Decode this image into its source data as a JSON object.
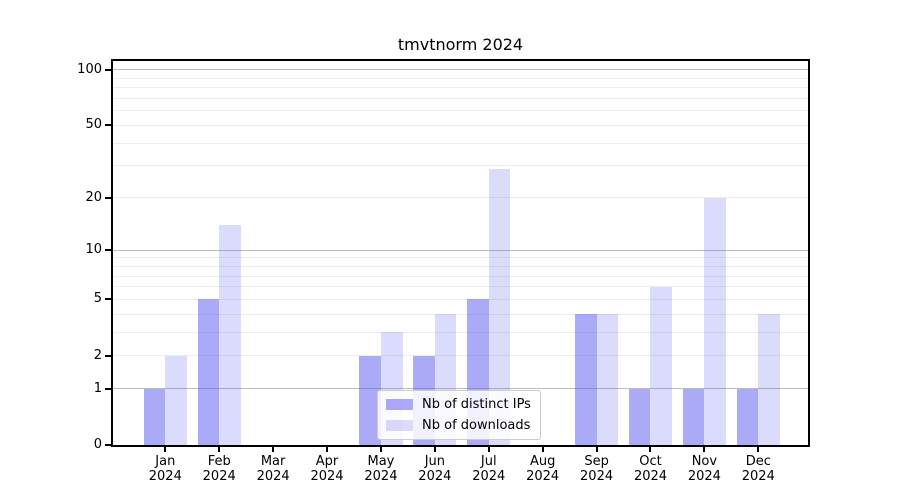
{
  "title": "tmvtnorm 2024",
  "legend": {
    "items": [
      {
        "label": "Nb of distinct IPs"
      },
      {
        "label": "Nb of downloads"
      }
    ]
  },
  "chart_data": {
    "type": "bar",
    "title": "tmvtnorm 2024",
    "xlabel": "",
    "ylabel": "",
    "yscale": "log1p",
    "ylim": [
      0,
      112
    ],
    "grid": true,
    "legend_position": "lower center",
    "categories": [
      "Jan 2024",
      "Feb 2024",
      "Mar 2024",
      "Apr 2024",
      "May 2024",
      "Jun 2024",
      "Jul 2024",
      "Aug 2024",
      "Sep 2024",
      "Oct 2024",
      "Nov 2024",
      "Dec 2024"
    ],
    "series": [
      {
        "name": "Nb of distinct IPs",
        "color": "rgba(92,92,237,0.52)",
        "values": [
          1,
          5,
          0,
          0,
          2,
          2,
          5,
          0,
          4,
          1,
          1,
          1
        ]
      },
      {
        "name": "Nb of downloads",
        "color": "rgba(92,92,237,0.22)",
        "values": [
          2,
          14,
          0,
          0,
          3,
          4,
          29,
          0,
          4,
          6,
          20,
          4
        ]
      }
    ],
    "yticks": [
      0,
      1,
      2,
      5,
      10,
      20,
      50,
      100
    ],
    "grid_values": [
      1,
      2,
      3,
      4,
      5,
      6,
      7,
      8,
      9,
      10,
      20,
      30,
      40,
      50,
      60,
      70,
      80,
      90,
      100
    ],
    "major_grid": [
      1,
      10,
      100
    ],
    "colors": {
      "bar_dark": "rgba(92,92,237,0.52)",
      "bar_light": "rgba(92,92,237,0.22)",
      "grid_major": "#bdbdbd",
      "grid_minor": "#ececec",
      "axis": "#000000"
    }
  }
}
